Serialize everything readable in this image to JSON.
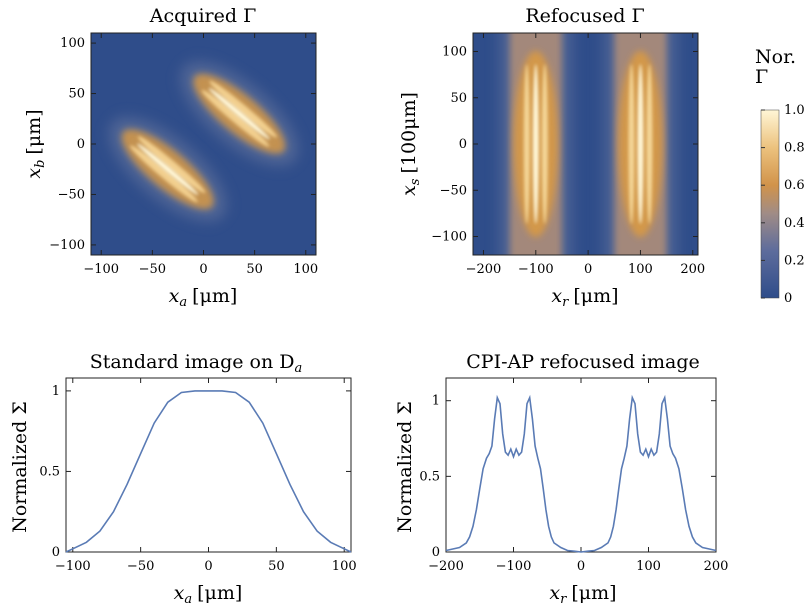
{
  "colors": {
    "heat_low": "#2f4d8a",
    "heat_mid": "#8a8ca6",
    "heat_orange": "#d89a45",
    "heat_high": "#fff6d6",
    "line": "#5a7bb5",
    "frame": "#222222"
  },
  "colorbar": {
    "label_line1": "Nor.",
    "label_line2": "Γ",
    "ticks": [
      "0",
      "0.2",
      "0.4",
      "0.6",
      "0.8",
      "1.0"
    ],
    "range": [
      0,
      1
    ]
  },
  "chart_data": [
    {
      "type": "heatmap",
      "title": "Acquired Γ",
      "xlabel_main": "x",
      "xlabel_sub": "a",
      "xlabel_unit": "[μm]",
      "ylabel_main": "x",
      "ylabel_sub": "b",
      "ylabel_unit": "[μm]",
      "xlim": [
        -110,
        110
      ],
      "ylim": [
        -110,
        110
      ],
      "xticks": [
        -100,
        -50,
        0,
        50,
        100
      ],
      "yticks": [
        -100,
        -50,
        0,
        50,
        100
      ],
      "xtick_labels": [
        "−100",
        "−50",
        "0",
        "50",
        "100"
      ],
      "ytick_labels": [
        "−100",
        "−50",
        "0",
        "50",
        "100"
      ],
      "features": [
        {
          "shape": "elongated lobe along x_b = −x_a + c",
          "center": [
            -35,
            -25
          ],
          "peak": 1.0
        },
        {
          "shape": "elongated lobe along x_b = −x_a + c",
          "center": [
            35,
            30
          ],
          "peak": 1.0
        }
      ]
    },
    {
      "type": "heatmap",
      "title": "Refocused Γ",
      "xlabel_main": "x",
      "xlabel_sub": "r",
      "xlabel_unit": "[μm]",
      "ylabel_main": "x",
      "ylabel_sub": "s",
      "ylabel_unit": "[100μm]",
      "xlim": [
        -220,
        210
      ],
      "ylim": [
        -120,
        120
      ],
      "xticks": [
        -200,
        -100,
        0,
        100,
        200
      ],
      "yticks": [
        -100,
        -50,
        0,
        50,
        100
      ],
      "xtick_labels": [
        "−200",
        "−100",
        "0",
        "100",
        "200"
      ],
      "ytick_labels": [
        "−100",
        "−50",
        "0",
        "50",
        "100"
      ],
      "features": [
        {
          "shape": "vertical band",
          "x_center": -100,
          "peak": 1.0
        },
        {
          "shape": "vertical band",
          "x_center": 100,
          "peak": 1.0
        }
      ]
    },
    {
      "type": "line",
      "title": "Standard image on D",
      "title_sub": "a",
      "xlabel_main": "x",
      "xlabel_sub": "a",
      "xlabel_unit": "[μm]",
      "ylabel": "Normalized Σ",
      "xlim": [
        -105,
        105
      ],
      "ylim": [
        0,
        1.08
      ],
      "xticks": [
        -100,
        -50,
        0,
        50,
        100
      ],
      "xtick_labels": [
        "−100",
        "−50",
        "0",
        "50",
        "100"
      ],
      "yticks": [
        0,
        0.5,
        1
      ],
      "ytick_labels": [
        "0",
        "0.5",
        "1"
      ],
      "series": [
        {
          "x": [
            -105,
            -100,
            -90,
            -80,
            -70,
            -60,
            -50,
            -40,
            -30,
            -20,
            -10,
            0,
            10,
            20,
            30,
            40,
            50,
            60,
            70,
            80,
            90,
            100,
            105
          ],
          "y": [
            0.0,
            0.02,
            0.06,
            0.13,
            0.25,
            0.42,
            0.61,
            0.8,
            0.93,
            0.99,
            1.0,
            1.0,
            1.0,
            0.99,
            0.93,
            0.8,
            0.61,
            0.42,
            0.25,
            0.13,
            0.06,
            0.02,
            0.0
          ]
        }
      ]
    },
    {
      "type": "line",
      "title": "CPI-AP refocused image",
      "xlabel_main": "x",
      "xlabel_sub": "r",
      "xlabel_unit": "[μm]",
      "ylabel": "Normalized Σ",
      "xlim": [
        -200,
        200
      ],
      "ylim": [
        0,
        1.15
      ],
      "xticks": [
        -200,
        -100,
        0,
        100,
        200
      ],
      "xtick_labels": [
        "−200",
        "−100",
        "0",
        "100",
        "200"
      ],
      "yticks": [
        0,
        0.5,
        1
      ],
      "ytick_labels": [
        "0",
        "0.5",
        "1"
      ],
      "series": [
        {
          "x": [
            -200,
            -190,
            -180,
            -170,
            -165,
            -160,
            -155,
            -150,
            -145,
            -140,
            -136,
            -132,
            -128,
            -124,
            -120,
            -116,
            -112,
            -108,
            -104,
            -100,
            -96,
            -92,
            -88,
            -84,
            -80,
            -76,
            -72,
            -68,
            -64,
            -60,
            -56,
            -52,
            -48,
            -44,
            -40,
            -30,
            -20,
            -10,
            0,
            10,
            20,
            30,
            40,
            44,
            48,
            52,
            56,
            60,
            64,
            68,
            72,
            76,
            80,
            84,
            88,
            92,
            96,
            100,
            104,
            108,
            112,
            116,
            120,
            124,
            128,
            132,
            136,
            140,
            145,
            150,
            155,
            160,
            165,
            170,
            180,
            190,
            200
          ],
          "y": [
            0.01,
            0.02,
            0.03,
            0.06,
            0.1,
            0.17,
            0.28,
            0.42,
            0.55,
            0.62,
            0.65,
            0.7,
            0.88,
            1.02,
            0.98,
            0.78,
            0.66,
            0.64,
            0.68,
            0.63,
            0.68,
            0.64,
            0.66,
            0.78,
            0.98,
            1.02,
            0.88,
            0.7,
            0.62,
            0.55,
            0.42,
            0.28,
            0.17,
            0.1,
            0.06,
            0.03,
            0.01,
            0.005,
            0.0,
            0.005,
            0.01,
            0.03,
            0.06,
            0.1,
            0.17,
            0.28,
            0.42,
            0.55,
            0.62,
            0.7,
            0.88,
            1.02,
            0.98,
            0.78,
            0.66,
            0.64,
            0.68,
            0.63,
            0.68,
            0.64,
            0.66,
            0.78,
            0.98,
            1.02,
            0.88,
            0.7,
            0.65,
            0.62,
            0.55,
            0.42,
            0.28,
            0.17,
            0.1,
            0.06,
            0.03,
            0.02,
            0.01
          ]
        }
      ]
    }
  ]
}
